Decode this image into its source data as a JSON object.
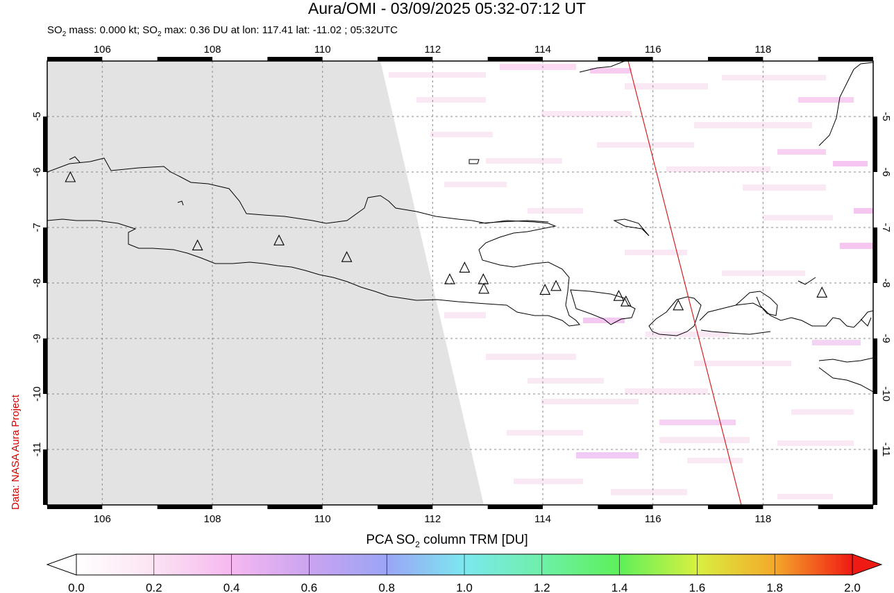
{
  "header": {
    "title": "Aura/OMI - 03/09/2025 05:32-07:12 UT",
    "subtitle_pre": "SO",
    "subtitle_sub": "2",
    "subtitle_mid": " mass: 0.000 kt; SO",
    "subtitle_sub2": "2",
    "subtitle_post": " max: 0.36 DU at lon: 117.41 lat: -11.02 ; 05:32UTC"
  },
  "credit": "Data: NASA Aura Project",
  "map": {
    "lon_range": [
      105,
      120
    ],
    "lat_range": [
      -12,
      -4
    ],
    "lon_ticks": [
      "106",
      "108",
      "110",
      "112",
      "114",
      "116",
      "118"
    ],
    "lat_ticks": [
      "-5",
      "-6",
      "-7",
      "-8",
      "-9",
      "-10",
      "-11"
    ],
    "max_marker": {
      "lon": 117.41,
      "lat": -11.02
    },
    "volcanoes": [
      {
        "lon": 105.42,
        "lat": -6.1
      },
      {
        "lon": 107.73,
        "lat": -7.33
      },
      {
        "lon": 109.21,
        "lat": -7.24
      },
      {
        "lon": 110.44,
        "lat": -7.54
      },
      {
        "lon": 112.31,
        "lat": -7.94
      },
      {
        "lon": 112.58,
        "lat": -7.73
      },
      {
        "lon": 112.92,
        "lat": -7.94
      },
      {
        "lon": 112.93,
        "lat": -8.11
      },
      {
        "lon": 114.04,
        "lat": -8.13
      },
      {
        "lon": 114.24,
        "lat": -8.06
      },
      {
        "lon": 115.38,
        "lat": -8.24
      },
      {
        "lon": 115.51,
        "lat": -8.34
      },
      {
        "lon": 116.46,
        "lat": -8.41
      },
      {
        "lon": 119.07,
        "lat": -8.18
      }
    ]
  },
  "colorbar": {
    "title_pre": "PCA SO",
    "title_sub": "2",
    "title_post": " column TRM [DU]",
    "ticks": [
      "0.0",
      "0.2",
      "0.4",
      "0.6",
      "0.8",
      "1.0",
      "1.2",
      "1.4",
      "1.6",
      "1.8",
      "2.0"
    ],
    "range": [
      0,
      2
    ]
  }
}
